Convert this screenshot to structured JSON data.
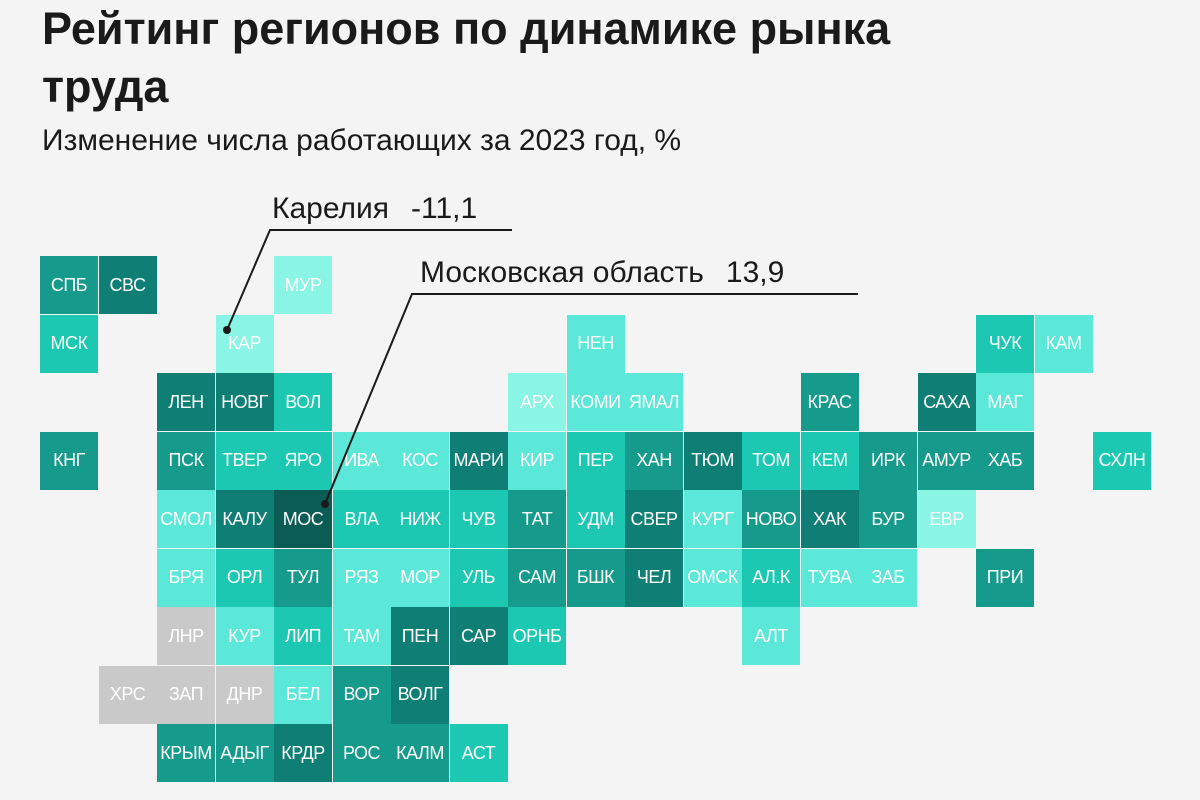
{
  "title": "Рейтинг регионов по динамике рынка труда",
  "subtitle": "Изменение числа работающих за 2023 год, %",
  "annotations": {
    "karelia": {
      "name": "Карелия",
      "value": "-11,1"
    },
    "moscow_obl": {
      "name": "Московская область",
      "value": "13,9"
    }
  },
  "colors": {
    "level1": "#8af5e4",
    "level2": "#5ce8d8",
    "level3": "#1cc8b2",
    "level4": "#159a8c",
    "level5": "#0f7e74",
    "level6": "#0a5c54",
    "nodata": "#c9c9c9",
    "leader_line": "#1a1a1a"
  },
  "chart_data": {
    "type": "heatmap",
    "grid_origin_x": 40,
    "grid_origin_y": 256,
    "cells": [
      {
        "label": "СПБ",
        "col": 0,
        "row": 0,
        "level": 4
      },
      {
        "label": "СВС",
        "col": 1,
        "row": 0,
        "level": 5
      },
      {
        "label": "МУР",
        "col": 4,
        "row": 0,
        "level": 1
      },
      {
        "label": "МСК",
        "col": 0,
        "row": 1,
        "level": 3
      },
      {
        "label": "КАР",
        "col": 3,
        "row": 1,
        "level": 1
      },
      {
        "label": "НЕН",
        "col": 9,
        "row": 1,
        "level": 2
      },
      {
        "label": "ЧУК",
        "col": 16,
        "row": 1,
        "level": 3
      },
      {
        "label": "КАМ",
        "col": 17,
        "row": 1,
        "level": 2
      },
      {
        "label": "ЛЕН",
        "col": 2,
        "row": 2,
        "level": 5
      },
      {
        "label": "НОВГ",
        "col": 3,
        "row": 2,
        "level": 5
      },
      {
        "label": "ВОЛ",
        "col": 4,
        "row": 2,
        "level": 3
      },
      {
        "label": "АРХ",
        "col": 8,
        "row": 2,
        "level": 1
      },
      {
        "label": "КОМИ",
        "col": 9,
        "row": 2,
        "level": 2
      },
      {
        "label": "ЯМАЛ",
        "col": 10,
        "row": 2,
        "level": 2
      },
      {
        "label": "КРАС",
        "col": 13,
        "row": 2,
        "level": 4
      },
      {
        "label": "САХА",
        "col": 15,
        "row": 2,
        "level": 5
      },
      {
        "label": "МАГ",
        "col": 16,
        "row": 2,
        "level": 2
      },
      {
        "label": "КНГ",
        "col": 0,
        "row": 3,
        "level": 4
      },
      {
        "label": "ПСК",
        "col": 2,
        "row": 3,
        "level": 4
      },
      {
        "label": "ТВЕР",
        "col": 3,
        "row": 3,
        "level": 3
      },
      {
        "label": "ЯРО",
        "col": 4,
        "row": 3,
        "level": 3
      },
      {
        "label": "ИВА",
        "col": 5,
        "row": 3,
        "level": 2
      },
      {
        "label": "КОС",
        "col": 6,
        "row": 3,
        "level": 2
      },
      {
        "label": "МАРИ",
        "col": 7,
        "row": 3,
        "level": 5
      },
      {
        "label": "КИР",
        "col": 8,
        "row": 3,
        "level": 2
      },
      {
        "label": "ПЕР",
        "col": 9,
        "row": 3,
        "level": 3
      },
      {
        "label": "ХАН",
        "col": 10,
        "row": 3,
        "level": 4
      },
      {
        "label": "ТЮМ",
        "col": 11,
        "row": 3,
        "level": 5
      },
      {
        "label": "ТОМ",
        "col": 12,
        "row": 3,
        "level": 3
      },
      {
        "label": "КЕМ",
        "col": 13,
        "row": 3,
        "level": 3
      },
      {
        "label": "ИРК",
        "col": 14,
        "row": 3,
        "level": 4
      },
      {
        "label": "АМУР",
        "col": 15,
        "row": 3,
        "level": 4
      },
      {
        "label": "ХАБ",
        "col": 16,
        "row": 3,
        "level": 4
      },
      {
        "label": "СХЛН",
        "col": 18,
        "row": 3,
        "level": 3
      },
      {
        "label": "СМОЛ",
        "col": 2,
        "row": 4,
        "level": 2
      },
      {
        "label": "КАЛУ",
        "col": 3,
        "row": 4,
        "level": 5
      },
      {
        "label": "МОС",
        "col": 4,
        "row": 4,
        "level": 6
      },
      {
        "label": "ВЛА",
        "col": 5,
        "row": 4,
        "level": 3
      },
      {
        "label": "НИЖ",
        "col": 6,
        "row": 4,
        "level": 3
      },
      {
        "label": "ЧУВ",
        "col": 7,
        "row": 4,
        "level": 3
      },
      {
        "label": "ТАТ",
        "col": 8,
        "row": 4,
        "level": 4
      },
      {
        "label": "УДМ",
        "col": 9,
        "row": 4,
        "level": 3
      },
      {
        "label": "СВЕР",
        "col": 10,
        "row": 4,
        "level": 5
      },
      {
        "label": "КУРГ",
        "col": 11,
        "row": 4,
        "level": 2
      },
      {
        "label": "НОВО",
        "col": 12,
        "row": 4,
        "level": 4
      },
      {
        "label": "ХАК",
        "col": 13,
        "row": 4,
        "level": 5
      },
      {
        "label": "БУР",
        "col": 14,
        "row": 4,
        "level": 4
      },
      {
        "label": "ЕВР",
        "col": 15,
        "row": 4,
        "level": 1
      },
      {
        "label": "БРЯ",
        "col": 2,
        "row": 5,
        "level": 2
      },
      {
        "label": "ОРЛ",
        "col": 3,
        "row": 5,
        "level": 3
      },
      {
        "label": "ТУЛ",
        "col": 4,
        "row": 5,
        "level": 4
      },
      {
        "label": "РЯЗ",
        "col": 5,
        "row": 5,
        "level": 2
      },
      {
        "label": "МОР",
        "col": 6,
        "row": 5,
        "level": 2
      },
      {
        "label": "УЛЬ",
        "col": 7,
        "row": 5,
        "level": 3
      },
      {
        "label": "САМ",
        "col": 8,
        "row": 5,
        "level": 4
      },
      {
        "label": "БШК",
        "col": 9,
        "row": 5,
        "level": 4
      },
      {
        "label": "ЧЕЛ",
        "col": 10,
        "row": 5,
        "level": 5
      },
      {
        "label": "ОМСК",
        "col": 11,
        "row": 5,
        "level": 2
      },
      {
        "label": "АЛ.К",
        "col": 12,
        "row": 5,
        "level": 3
      },
      {
        "label": "ТУВА",
        "col": 13,
        "row": 5,
        "level": 2
      },
      {
        "label": "ЗАБ",
        "col": 14,
        "row": 5,
        "level": 2
      },
      {
        "label": "ПРИ",
        "col": 16,
        "row": 5,
        "level": 4
      },
      {
        "label": "ЛНР",
        "col": 2,
        "row": 6,
        "level": 0
      },
      {
        "label": "КУР",
        "col": 3,
        "row": 6,
        "level": 2
      },
      {
        "label": "ЛИП",
        "col": 4,
        "row": 6,
        "level": 3
      },
      {
        "label": "ТАМ",
        "col": 5,
        "row": 6,
        "level": 2
      },
      {
        "label": "ПЕН",
        "col": 6,
        "row": 6,
        "level": 5
      },
      {
        "label": "САР",
        "col": 7,
        "row": 6,
        "level": 5
      },
      {
        "label": "ОРНБ",
        "col": 8,
        "row": 6,
        "level": 3
      },
      {
        "label": "АЛТ",
        "col": 12,
        "row": 6,
        "level": 2
      },
      {
        "label": "ХРС",
        "col": 1,
        "row": 7,
        "level": 0
      },
      {
        "label": "ЗАП",
        "col": 2,
        "row": 7,
        "level": 0
      },
      {
        "label": "ДНР",
        "col": 3,
        "row": 7,
        "level": 0
      },
      {
        "label": "БЕЛ",
        "col": 4,
        "row": 7,
        "level": 2
      },
      {
        "label": "ВОР",
        "col": 5,
        "row": 7,
        "level": 4
      },
      {
        "label": "ВОЛГ",
        "col": 6,
        "row": 7,
        "level": 5
      },
      {
        "label": "КРЫМ",
        "col": 2,
        "row": 8,
        "level": 4
      },
      {
        "label": "АДЫГ",
        "col": 3,
        "row": 8,
        "level": 4
      },
      {
        "label": "КРДР",
        "col": 4,
        "row": 8,
        "level": 5
      },
      {
        "label": "РОС",
        "col": 5,
        "row": 8,
        "level": 4
      },
      {
        "label": "КАЛМ",
        "col": 6,
        "row": 8,
        "level": 4
      },
      {
        "label": "АСТ",
        "col": 7,
        "row": 8,
        "level": 3
      }
    ]
  }
}
